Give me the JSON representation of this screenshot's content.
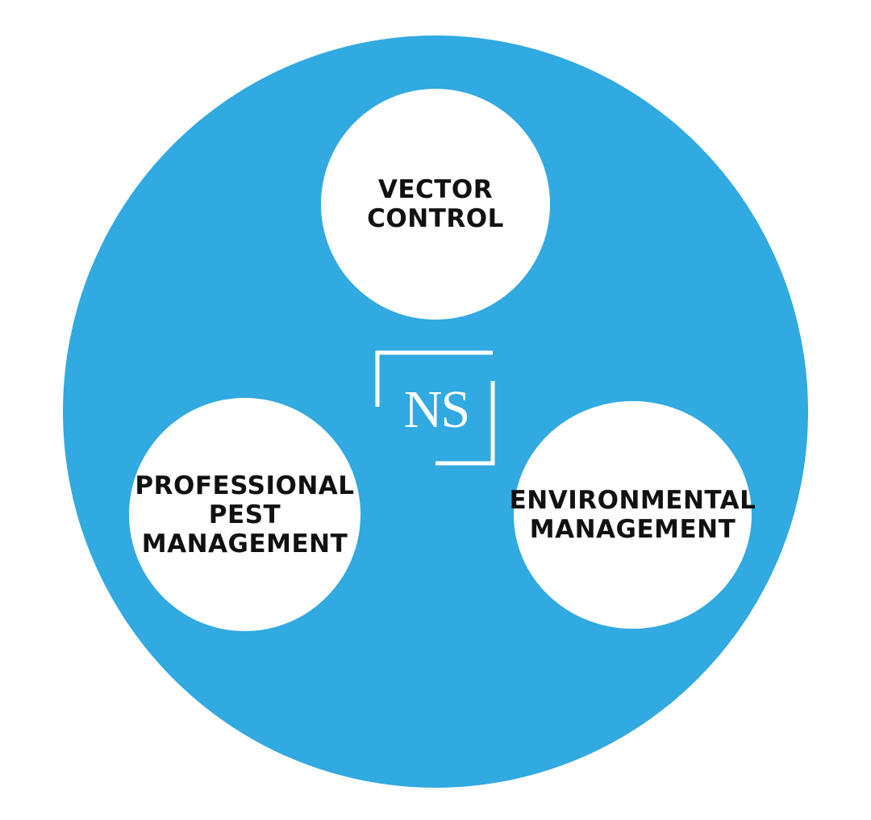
{
  "diagram": {
    "nodes": [
      {
        "id": "vector-control",
        "label": "VECTOR\nCONTROL"
      },
      {
        "id": "professional-pest-management",
        "label": "PROFESSIONAL\nPEST\nMANAGEMENT"
      },
      {
        "id": "environmental-management",
        "label": "ENVIRONMENTAL\nMANAGEMENT"
      }
    ],
    "center_logo": {
      "text": "NS"
    }
  },
  "colors": {
    "outer_circle": "#31a9e1",
    "node_fill": "#ffffff",
    "node_text": "#111111",
    "logo": "#ffffff"
  }
}
